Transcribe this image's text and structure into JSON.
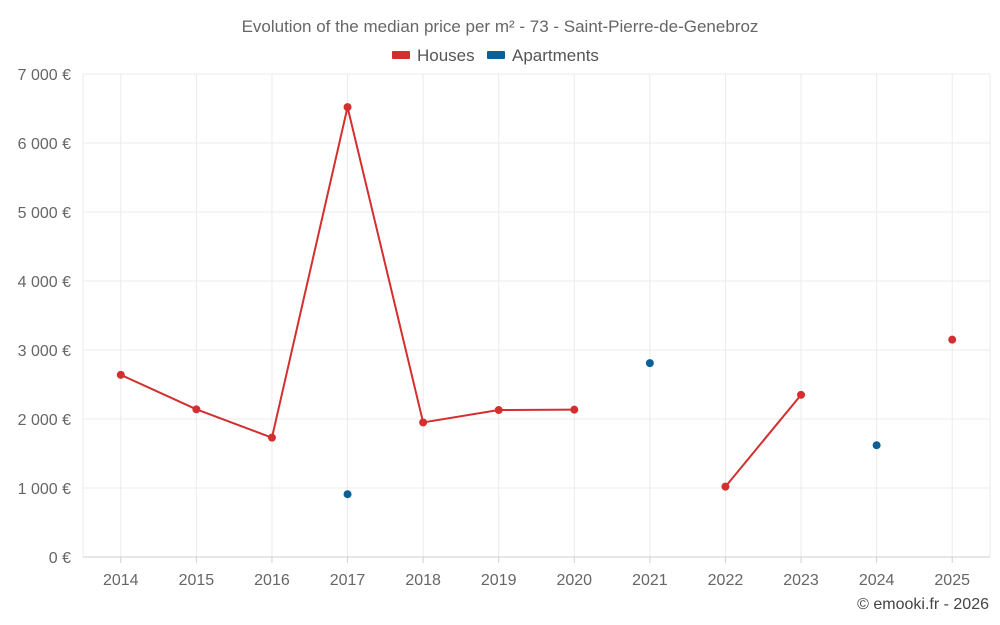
{
  "chart_data": {
    "type": "line",
    "title": "Evolution of the median price per m² - 73 - Saint-Pierre-de-Genebroz",
    "categories": [
      "2014",
      "2015",
      "2016",
      "2017",
      "2018",
      "2019",
      "2020",
      "2021",
      "2022",
      "2023",
      "2024",
      "2025"
    ],
    "y_ticks": [
      0,
      1000,
      2000,
      3000,
      4000,
      5000,
      6000,
      7000
    ],
    "y_tick_labels": [
      "0 €",
      "1 000 €",
      "2 000 €",
      "3 000 €",
      "4 000 €",
      "5 000 €",
      "6 000 €",
      "7 000 €"
    ],
    "ylim": [
      0,
      7000
    ],
    "grid": true,
    "legend_position": "top-center",
    "series": [
      {
        "name": "Houses",
        "color": "#d32f2f",
        "values": [
          2640,
          2140,
          1730,
          6520,
          1950,
          2130,
          2135,
          null,
          1020,
          2350,
          null,
          3150
        ]
      },
      {
        "name": "Apartments",
        "color": "#0d6096",
        "values": [
          null,
          null,
          null,
          910,
          null,
          null,
          null,
          2810,
          null,
          null,
          1620,
          null
        ]
      }
    ],
    "credit": "© emooki.fr - 2026"
  }
}
